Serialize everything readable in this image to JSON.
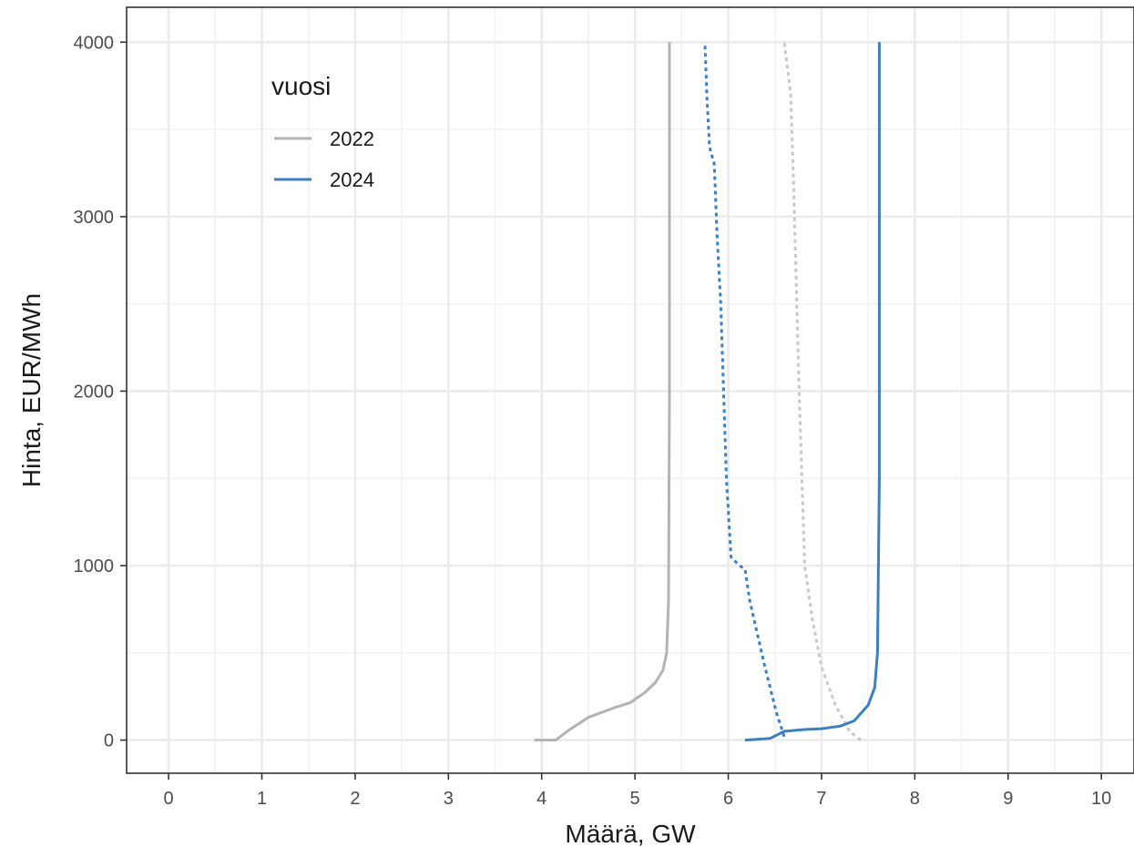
{
  "chart_data": {
    "type": "line",
    "xlabel": "Määrä, GW",
    "ylabel": "Hinta, EUR/MWh",
    "xlim": [
      -0.45,
      10.35
    ],
    "ylim": [
      -190,
      4200
    ],
    "x_ticks": [
      0,
      1,
      2,
      3,
      4,
      5,
      6,
      7,
      8,
      9,
      10
    ],
    "y_ticks": [
      0,
      1000,
      2000,
      3000,
      4000
    ],
    "grid": true,
    "legend": {
      "title": "vuosi",
      "position": "top-left",
      "entries": [
        {
          "label": "2022",
          "color": "#b3b3b3"
        },
        {
          "label": "2024",
          "color": "#3d80c0"
        }
      ]
    },
    "series": [
      {
        "name": "2022",
        "linestyle": "solid",
        "color": "#b3b3b3",
        "points": [
          [
            3.92,
            0
          ],
          [
            4.15,
            0
          ],
          [
            4.3,
            60
          ],
          [
            4.5,
            130
          ],
          [
            4.75,
            180
          ],
          [
            4.95,
            215
          ],
          [
            5.1,
            270
          ],
          [
            5.22,
            330
          ],
          [
            5.3,
            400
          ],
          [
            5.34,
            500
          ],
          [
            5.36,
            800
          ],
          [
            5.37,
            2000
          ],
          [
            5.37,
            4000
          ]
        ]
      },
      {
        "name": "2022",
        "linestyle": "dotted",
        "color": "#c8c8c8",
        "points": [
          [
            7.42,
            0
          ],
          [
            7.3,
            50
          ],
          [
            7.15,
            200
          ],
          [
            7.0,
            420
          ],
          [
            6.9,
            700
          ],
          [
            6.82,
            1000
          ],
          [
            6.79,
            1500
          ],
          [
            6.76,
            2000
          ],
          [
            6.73,
            2600
          ],
          [
            6.7,
            3200
          ],
          [
            6.67,
            3700
          ],
          [
            6.6,
            4000
          ]
        ]
      },
      {
        "name": "2024",
        "linestyle": "solid",
        "color": "#3d80c0",
        "points": [
          [
            6.18,
            0
          ],
          [
            6.45,
            10
          ],
          [
            6.6,
            50
          ],
          [
            6.8,
            60
          ],
          [
            7.0,
            65
          ],
          [
            7.2,
            80
          ],
          [
            7.35,
            110
          ],
          [
            7.5,
            200
          ],
          [
            7.57,
            300
          ],
          [
            7.6,
            500
          ],
          [
            7.62,
            1500
          ],
          [
            7.62,
            4000
          ]
        ]
      },
      {
        "name": "2024",
        "linestyle": "dotted",
        "color": "#3d80c0",
        "points": [
          [
            6.6,
            20
          ],
          [
            6.52,
            150
          ],
          [
            6.38,
            450
          ],
          [
            6.23,
            800
          ],
          [
            6.18,
            980
          ],
          [
            6.12,
            1000
          ],
          [
            6.03,
            1050
          ],
          [
            5.98,
            1500
          ],
          [
            5.95,
            2000
          ],
          [
            5.92,
            2500
          ],
          [
            5.88,
            2900
          ],
          [
            5.85,
            3300
          ],
          [
            5.8,
            3400
          ],
          [
            5.77,
            3700
          ],
          [
            5.75,
            4000
          ]
        ]
      }
    ]
  }
}
